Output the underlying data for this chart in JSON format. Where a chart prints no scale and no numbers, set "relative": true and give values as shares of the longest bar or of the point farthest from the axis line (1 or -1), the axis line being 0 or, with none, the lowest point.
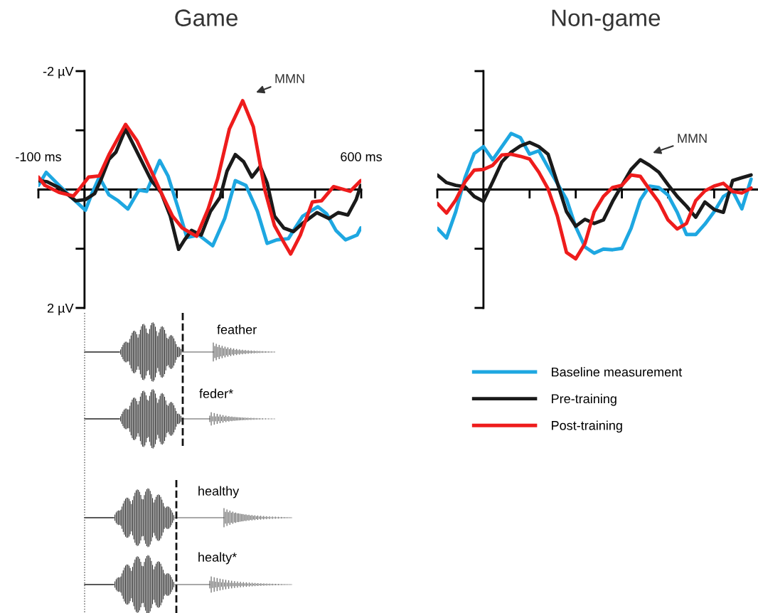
{
  "chart_data": [
    {
      "type": "line",
      "title": "Game",
      "xlim": [
        -100,
        600
      ],
      "ylim": [
        2,
        -2
      ],
      "xticks": [
        {
          "value": -100,
          "label": "-100 ms"
        },
        {
          "value": 0,
          "label": null
        },
        {
          "value": 100,
          "label": null
        },
        {
          "value": 200,
          "label": null
        },
        {
          "value": 300,
          "label": null
        },
        {
          "value": 400,
          "label": null
        },
        {
          "value": 500,
          "label": null
        },
        {
          "value": 600,
          "label": "600 ms"
        }
      ],
      "yticks": [
        {
          "value": -2,
          "label": "-2 µV"
        },
        {
          "value": -1,
          "label": null
        },
        {
          "value": 0,
          "label": null
        },
        {
          "value": 1,
          "label": null
        },
        {
          "value": 2,
          "label": "2 µV"
        }
      ],
      "marker": "none",
      "line_style": "solid",
      "annotations": [
        "MMN",
        "feather",
        "feder*",
        "healthy",
        "healty*"
      ],
      "series": [
        {
          "color": "#1ea7e1",
          "x": [
            -100,
            -83,
            -60,
            -29,
            2,
            17,
            32,
            53,
            73,
            94,
            118,
            135,
            163,
            181,
            202,
            222,
            248,
            278,
            304,
            327,
            350,
            375,
            396,
            417,
            442,
            473,
            506,
            525,
            545,
            566,
            591,
            599
          ],
          "values": [
            -0.07,
            -0.29,
            -0.11,
            0.13,
            0.35,
            0.05,
            -0.21,
            0.09,
            0.19,
            0.33,
            0.01,
            0.03,
            -0.49,
            -0.23,
            0.29,
            0.81,
            0.77,
            0.95,
            0.49,
            -0.15,
            -0.07,
            0.37,
            0.91,
            0.85,
            0.83,
            0.45,
            0.29,
            0.41,
            0.69,
            0.85,
            0.77,
            0.65
          ]
        },
        {
          "color": "#1a1a1a",
          "x": [
            -100,
            -81,
            -55,
            -19,
            2,
            22,
            37,
            53,
            68,
            89,
            109,
            145,
            166,
            186,
            204,
            217,
            232,
            253,
            273,
            294,
            309,
            327,
            345,
            363,
            381,
            396,
            412,
            432,
            453,
            473,
            504,
            530,
            550,
            571,
            589,
            599
          ],
          "values": [
            -0.15,
            -0.13,
            -0.03,
            0.19,
            0.17,
            0.07,
            -0.19,
            -0.51,
            -0.63,
            -1.02,
            -0.71,
            -0.15,
            0.05,
            0.45,
            1.01,
            0.85,
            0.69,
            0.77,
            0.37,
            0.13,
            -0.31,
            -0.59,
            -0.47,
            -0.21,
            -0.39,
            -0.11,
            0.45,
            0.65,
            0.71,
            0.57,
            0.39,
            0.49,
            0.39,
            0.43,
            0.17,
            -0.07
          ]
        },
        {
          "color": "#ee1c1c",
          "x": [
            -100,
            -86,
            -55,
            -24,
            -9,
            9,
            32,
            53,
            89,
            114,
            140,
            166,
            191,
            212,
            243,
            268,
            289,
            314,
            343,
            366,
            391,
            412,
            432,
            447,
            468,
            494,
            514,
            540,
            576,
            599
          ],
          "values": [
            -0.21,
            -0.07,
            0.05,
            0.11,
            -0.03,
            -0.21,
            -0.23,
            -0.59,
            -1.1,
            -0.82,
            -0.39,
            0.05,
            0.45,
            0.65,
            0.79,
            0.33,
            -0.19,
            -1.02,
            -1.5,
            -1.06,
            0.01,
            0.61,
            0.89,
            1.09,
            0.77,
            0.21,
            0.19,
            -0.05,
            0.03,
            -0.15
          ]
        }
      ]
    },
    {
      "type": "line",
      "title": "Non-game",
      "relative": true,
      "categories": [
        null,
        null,
        null,
        null,
        null,
        null,
        null,
        null,
        null,
        null,
        null,
        null,
        null,
        null,
        null,
        null,
        null,
        null,
        null,
        null,
        null,
        null,
        null,
        null,
        null,
        null,
        null,
        null,
        null,
        null,
        null,
        null,
        null,
        null,
        null
      ],
      "legend": "bottom",
      "marker": "none",
      "line_style": "solid",
      "annotations": [
        "MMN"
      ],
      "series": [
        {
          "name": "Baseline measurement",
          "color": "#1ea7e1",
          "values": [
            -0.56,
            -0.7,
            -0.32,
            0.17,
            0.52,
            0.62,
            0.43,
            0.62,
            0.81,
            0.75,
            0.51,
            0.56,
            0.32,
            0.09,
            -0.14,
            -0.54,
            -0.83,
            -0.92,
            -0.86,
            -0.87,
            -0.85,
            -0.56,
            -0.15,
            0.05,
            0.03,
            -0.08,
            -0.33,
            -0.65,
            -0.65,
            -0.5,
            -0.32,
            -0.1,
            -0.02,
            -0.28,
            0.15
          ]
        },
        {
          "name": "Pre-training",
          "color": "#1a1a1a",
          "values": [
            0.21,
            0.1,
            0.06,
            0.04,
            -0.1,
            -0.17,
            0.11,
            0.4,
            0.54,
            0.63,
            0.68,
            0.62,
            0.51,
            0.1,
            -0.32,
            -0.53,
            -0.43,
            -0.49,
            -0.44,
            -0.17,
            0.06,
            0.29,
            0.43,
            0.35,
            0.25,
            0.07,
            -0.1,
            -0.24,
            -0.4,
            -0.18,
            -0.29,
            -0.33,
            0.13,
            0.17,
            0.21
          ]
        },
        {
          "name": "Post-training",
          "color": "#ee1c1c",
          "values": [
            -0.2,
            -0.34,
            -0.15,
            0.11,
            0.28,
            0.29,
            0.35,
            0.5,
            0.51,
            0.48,
            0.44,
            0.25,
            0.01,
            -0.38,
            -0.91,
            -1,
            -0.78,
            -0.32,
            -0.1,
            0.03,
            0.06,
            0.21,
            0.19,
            0,
            -0.18,
            -0.44,
            -0.57,
            -0.49,
            -0.16,
            -0.02,
            0.05,
            0.09,
            -0.03,
            -0.05,
            0.02
          ]
        }
      ]
    }
  ]
}
